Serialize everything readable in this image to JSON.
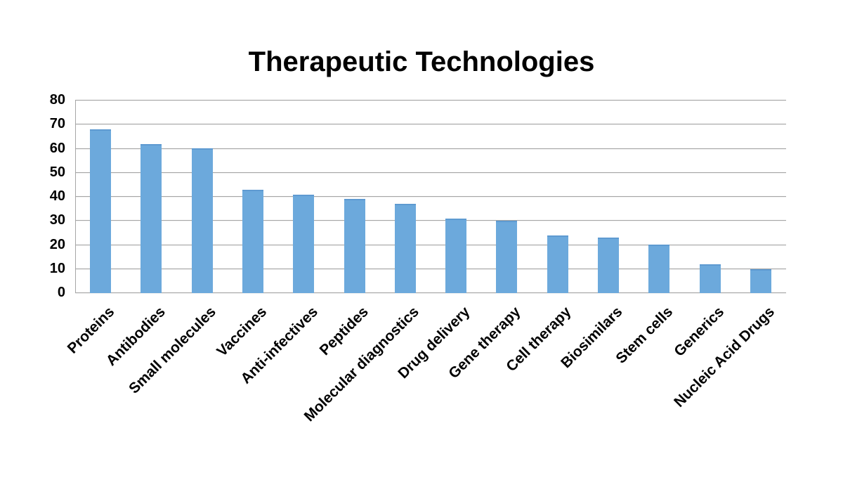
{
  "chart_data": {
    "type": "bar",
    "title": "Therapeutic Technologies",
    "categories": [
      "Proteins",
      "Antibodies",
      "Small molecules",
      "Vaccines",
      "Anti-infectives",
      "Peptides",
      "Molecular diagnostics",
      "Drug delivery",
      "Gene therapy",
      "Cell therapy",
      "Biosimilars",
      "Stem cells",
      "Generics",
      "Nucleic Acid Drugs"
    ],
    "values": [
      68,
      62,
      60,
      43,
      41,
      39,
      37,
      31,
      30,
      24,
      23,
      20,
      12,
      10
    ],
    "xlabel": "",
    "ylabel": "",
    "ylim": [
      0,
      80
    ],
    "yticks": [
      0,
      10,
      20,
      30,
      40,
      50,
      60,
      70,
      80
    ],
    "grid": true,
    "legend_position": "none",
    "bar_color": "#6CA9DC",
    "bar_top_edge_color": "#5E9AD1",
    "gridline_color": "#A6A6A6",
    "axis_line_color": "#A6A6A6",
    "text_color": "#000000",
    "background_color": "#FFFFFF"
  }
}
